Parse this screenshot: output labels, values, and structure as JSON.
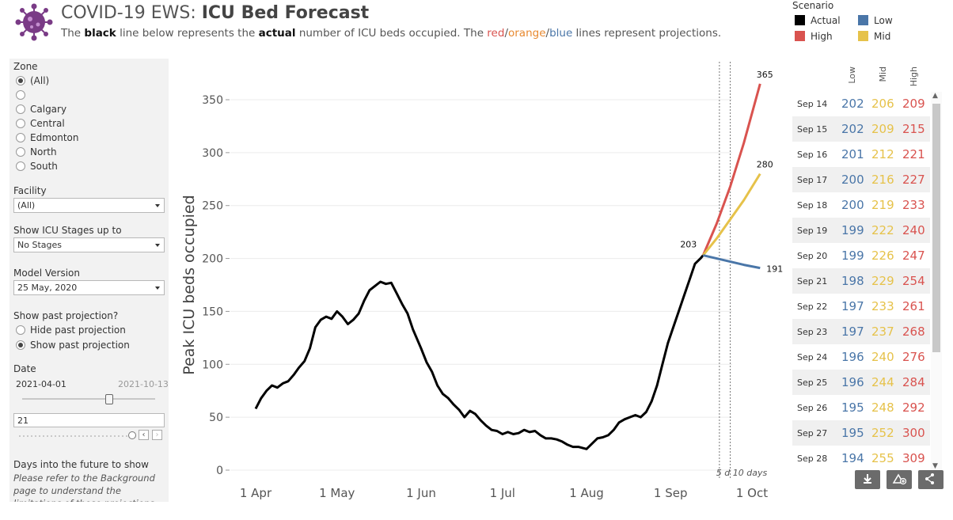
{
  "header": {
    "title_prefix": "COVID-19 EWS: ",
    "title_bold": "ICU Bed Forecast",
    "sub_1": "The ",
    "sub_2": "black",
    "sub_3": " line below represents the ",
    "sub_4": "actual",
    "sub_5": " number of ICU beds occupied. The ",
    "sub_red": "red",
    "sub_slash1": "/",
    "sub_orange": "orange",
    "sub_slash2": "/",
    "sub_blue": "blue",
    "sub_6": " lines represent projections."
  },
  "legend": {
    "title": "Scenario",
    "items": [
      {
        "label": "Actual",
        "color": "#000000"
      },
      {
        "label": "High",
        "color": "#d9534f"
      },
      {
        "label": "Low",
        "color": "#4a76a8"
      },
      {
        "label": "Mid",
        "color": "#e6c24a"
      }
    ]
  },
  "filters": {
    "zone_label": "Zone",
    "zones": [
      "(All)",
      "",
      "Calgary",
      "Central",
      "Edmonton",
      "North",
      "South"
    ],
    "facility_label": "Facility",
    "facility_value": "(All)",
    "stages_label": "Show ICU Stages up to",
    "stages_value": "No Stages",
    "model_label": "Model Version",
    "model_value": "25 May, 2020",
    "past_label": "Show past projection?",
    "past_options": [
      "Hide past projection",
      "Show past projection"
    ],
    "date_label": "Date",
    "date_start": "2021-04-01",
    "date_end": "2021-10-13",
    "days_value": "21",
    "days_label": "Days into the future to show",
    "note": "Please refer to the Background page to understand the limitations of these projections"
  },
  "chart_data": {
    "type": "line",
    "ylabel": "Peak ICU beds occupied",
    "xlabel": "",
    "ylim": [
      0,
      370
    ],
    "yticks": [
      0,
      50,
      100,
      150,
      200,
      250,
      300,
      350
    ],
    "xticks": [
      "1 Apr",
      "1 May",
      "1 Jun",
      "1 Jul",
      "1 Aug",
      "1 Sep",
      "1 Oct"
    ],
    "annotation": "5 d 10 days",
    "series": [
      {
        "name": "Actual",
        "color": "#000000",
        "points": [
          [
            "2021-04-01",
            58
          ],
          [
            "2021-04-03",
            68
          ],
          [
            "2021-04-05",
            75
          ],
          [
            "2021-04-07",
            80
          ],
          [
            "2021-04-09",
            78
          ],
          [
            "2021-04-11",
            82
          ],
          [
            "2021-04-13",
            84
          ],
          [
            "2021-04-15",
            90
          ],
          [
            "2021-04-17",
            97
          ],
          [
            "2021-04-19",
            103
          ],
          [
            "2021-04-21",
            115
          ],
          [
            "2021-04-23",
            135
          ],
          [
            "2021-04-25",
            142
          ],
          [
            "2021-04-27",
            145
          ],
          [
            "2021-04-29",
            143
          ],
          [
            "2021-05-01",
            150
          ],
          [
            "2021-05-03",
            145
          ],
          [
            "2021-05-05",
            138
          ],
          [
            "2021-05-07",
            142
          ],
          [
            "2021-05-09",
            148
          ],
          [
            "2021-05-11",
            160
          ],
          [
            "2021-05-13",
            170
          ],
          [
            "2021-05-15",
            174
          ],
          [
            "2021-05-17",
            178
          ],
          [
            "2021-05-19",
            176
          ],
          [
            "2021-05-21",
            177
          ],
          [
            "2021-05-23",
            167
          ],
          [
            "2021-05-25",
            157
          ],
          [
            "2021-05-27",
            148
          ],
          [
            "2021-05-29",
            133
          ],
          [
            "2021-06-01",
            115
          ],
          [
            "2021-06-03",
            102
          ],
          [
            "2021-06-05",
            93
          ],
          [
            "2021-06-07",
            80
          ],
          [
            "2021-06-09",
            72
          ],
          [
            "2021-06-11",
            68
          ],
          [
            "2021-06-13",
            62
          ],
          [
            "2021-06-15",
            57
          ],
          [
            "2021-06-17",
            50
          ],
          [
            "2021-06-19",
            56
          ],
          [
            "2021-06-21",
            53
          ],
          [
            "2021-06-23",
            47
          ],
          [
            "2021-06-25",
            42
          ],
          [
            "2021-06-27",
            38
          ],
          [
            "2021-06-29",
            37
          ],
          [
            "2021-07-01",
            34
          ],
          [
            "2021-07-03",
            36
          ],
          [
            "2021-07-05",
            34
          ],
          [
            "2021-07-07",
            35
          ],
          [
            "2021-07-09",
            38
          ],
          [
            "2021-07-11",
            36
          ],
          [
            "2021-07-13",
            37
          ],
          [
            "2021-07-15",
            33
          ],
          [
            "2021-07-17",
            30
          ],
          [
            "2021-07-19",
            30
          ],
          [
            "2021-07-21",
            29
          ],
          [
            "2021-07-23",
            27
          ],
          [
            "2021-07-25",
            24
          ],
          [
            "2021-07-27",
            22
          ],
          [
            "2021-07-29",
            22
          ],
          [
            "2021-08-01",
            20
          ],
          [
            "2021-08-03",
            25
          ],
          [
            "2021-08-05",
            30
          ],
          [
            "2021-08-07",
            31
          ],
          [
            "2021-08-09",
            33
          ],
          [
            "2021-08-11",
            38
          ],
          [
            "2021-08-13",
            45
          ],
          [
            "2021-08-15",
            48
          ],
          [
            "2021-08-17",
            50
          ],
          [
            "2021-08-19",
            52
          ],
          [
            "2021-08-21",
            50
          ],
          [
            "2021-08-23",
            55
          ],
          [
            "2021-08-25",
            65
          ],
          [
            "2021-08-27",
            80
          ],
          [
            "2021-08-29",
            100
          ],
          [
            "2021-08-31",
            120
          ],
          [
            "2021-09-02",
            135
          ],
          [
            "2021-09-04",
            150
          ],
          [
            "2021-09-06",
            165
          ],
          [
            "2021-09-08",
            180
          ],
          [
            "2021-09-10",
            195
          ],
          [
            "2021-09-12",
            200
          ],
          [
            "2021-09-13",
            203
          ]
        ]
      },
      {
        "name": "High",
        "color": "#d9534f",
        "points": [
          [
            "2021-09-13",
            203
          ],
          [
            "2021-09-18",
            233
          ],
          [
            "2021-09-23",
            268
          ],
          [
            "2021-09-28",
            309
          ],
          [
            "2021-10-04",
            365
          ]
        ]
      },
      {
        "name": "Mid",
        "color": "#e6c24a",
        "points": [
          [
            "2021-09-13",
            203
          ],
          [
            "2021-09-18",
            219
          ],
          [
            "2021-09-23",
            237
          ],
          [
            "2021-09-28",
            255
          ],
          [
            "2021-10-04",
            280
          ]
        ]
      },
      {
        "name": "Low",
        "color": "#4a76a8",
        "points": [
          [
            "2021-09-13",
            203
          ],
          [
            "2021-09-18",
            200
          ],
          [
            "2021-09-23",
            197
          ],
          [
            "2021-09-28",
            194
          ],
          [
            "2021-10-04",
            191
          ]
        ]
      }
    ],
    "point_labels": [
      {
        "date": "2021-09-13",
        "value": 203,
        "text": "203"
      },
      {
        "date": "2021-10-04",
        "value": 365,
        "text": "365"
      },
      {
        "date": "2021-10-04",
        "value": 280,
        "text": "280"
      },
      {
        "date": "2021-10-04",
        "value": 191,
        "text": "191"
      }
    ],
    "vlines": [
      "2021-09-19",
      "2021-09-23"
    ]
  },
  "table": {
    "headers": [
      "Low",
      "Mid",
      "High"
    ],
    "rows": [
      {
        "date": "Sep 14",
        "low": "202",
        "mid": "206",
        "high": "209"
      },
      {
        "date": "Sep 15",
        "low": "202",
        "mid": "209",
        "high": "215"
      },
      {
        "date": "Sep 16",
        "low": "201",
        "mid": "212",
        "high": "221"
      },
      {
        "date": "Sep 17",
        "low": "200",
        "mid": "216",
        "high": "227"
      },
      {
        "date": "Sep 18",
        "low": "200",
        "mid": "219",
        "high": "233"
      },
      {
        "date": "Sep 19",
        "low": "199",
        "mid": "222",
        "high": "240"
      },
      {
        "date": "Sep 20",
        "low": "199",
        "mid": "226",
        "high": "247"
      },
      {
        "date": "Sep 21",
        "low": "198",
        "mid": "229",
        "high": "254"
      },
      {
        "date": "Sep 22",
        "low": "197",
        "mid": "233",
        "high": "261"
      },
      {
        "date": "Sep 23",
        "low": "197",
        "mid": "237",
        "high": "268"
      },
      {
        "date": "Sep 24",
        "low": "196",
        "mid": "240",
        "high": "276"
      },
      {
        "date": "Sep 25",
        "low": "196",
        "mid": "244",
        "high": "284"
      },
      {
        "date": "Sep 26",
        "low": "195",
        "mid": "248",
        "high": "292"
      },
      {
        "date": "Sep 27",
        "low": "195",
        "mid": "252",
        "high": "300"
      },
      {
        "date": "Sep 28",
        "low": "194",
        "mid": "255",
        "high": "309"
      }
    ]
  },
  "toolbar": {
    "download_icon": "download-icon",
    "alert_icon": "add-alert-icon",
    "share_icon": "share-icon"
  }
}
